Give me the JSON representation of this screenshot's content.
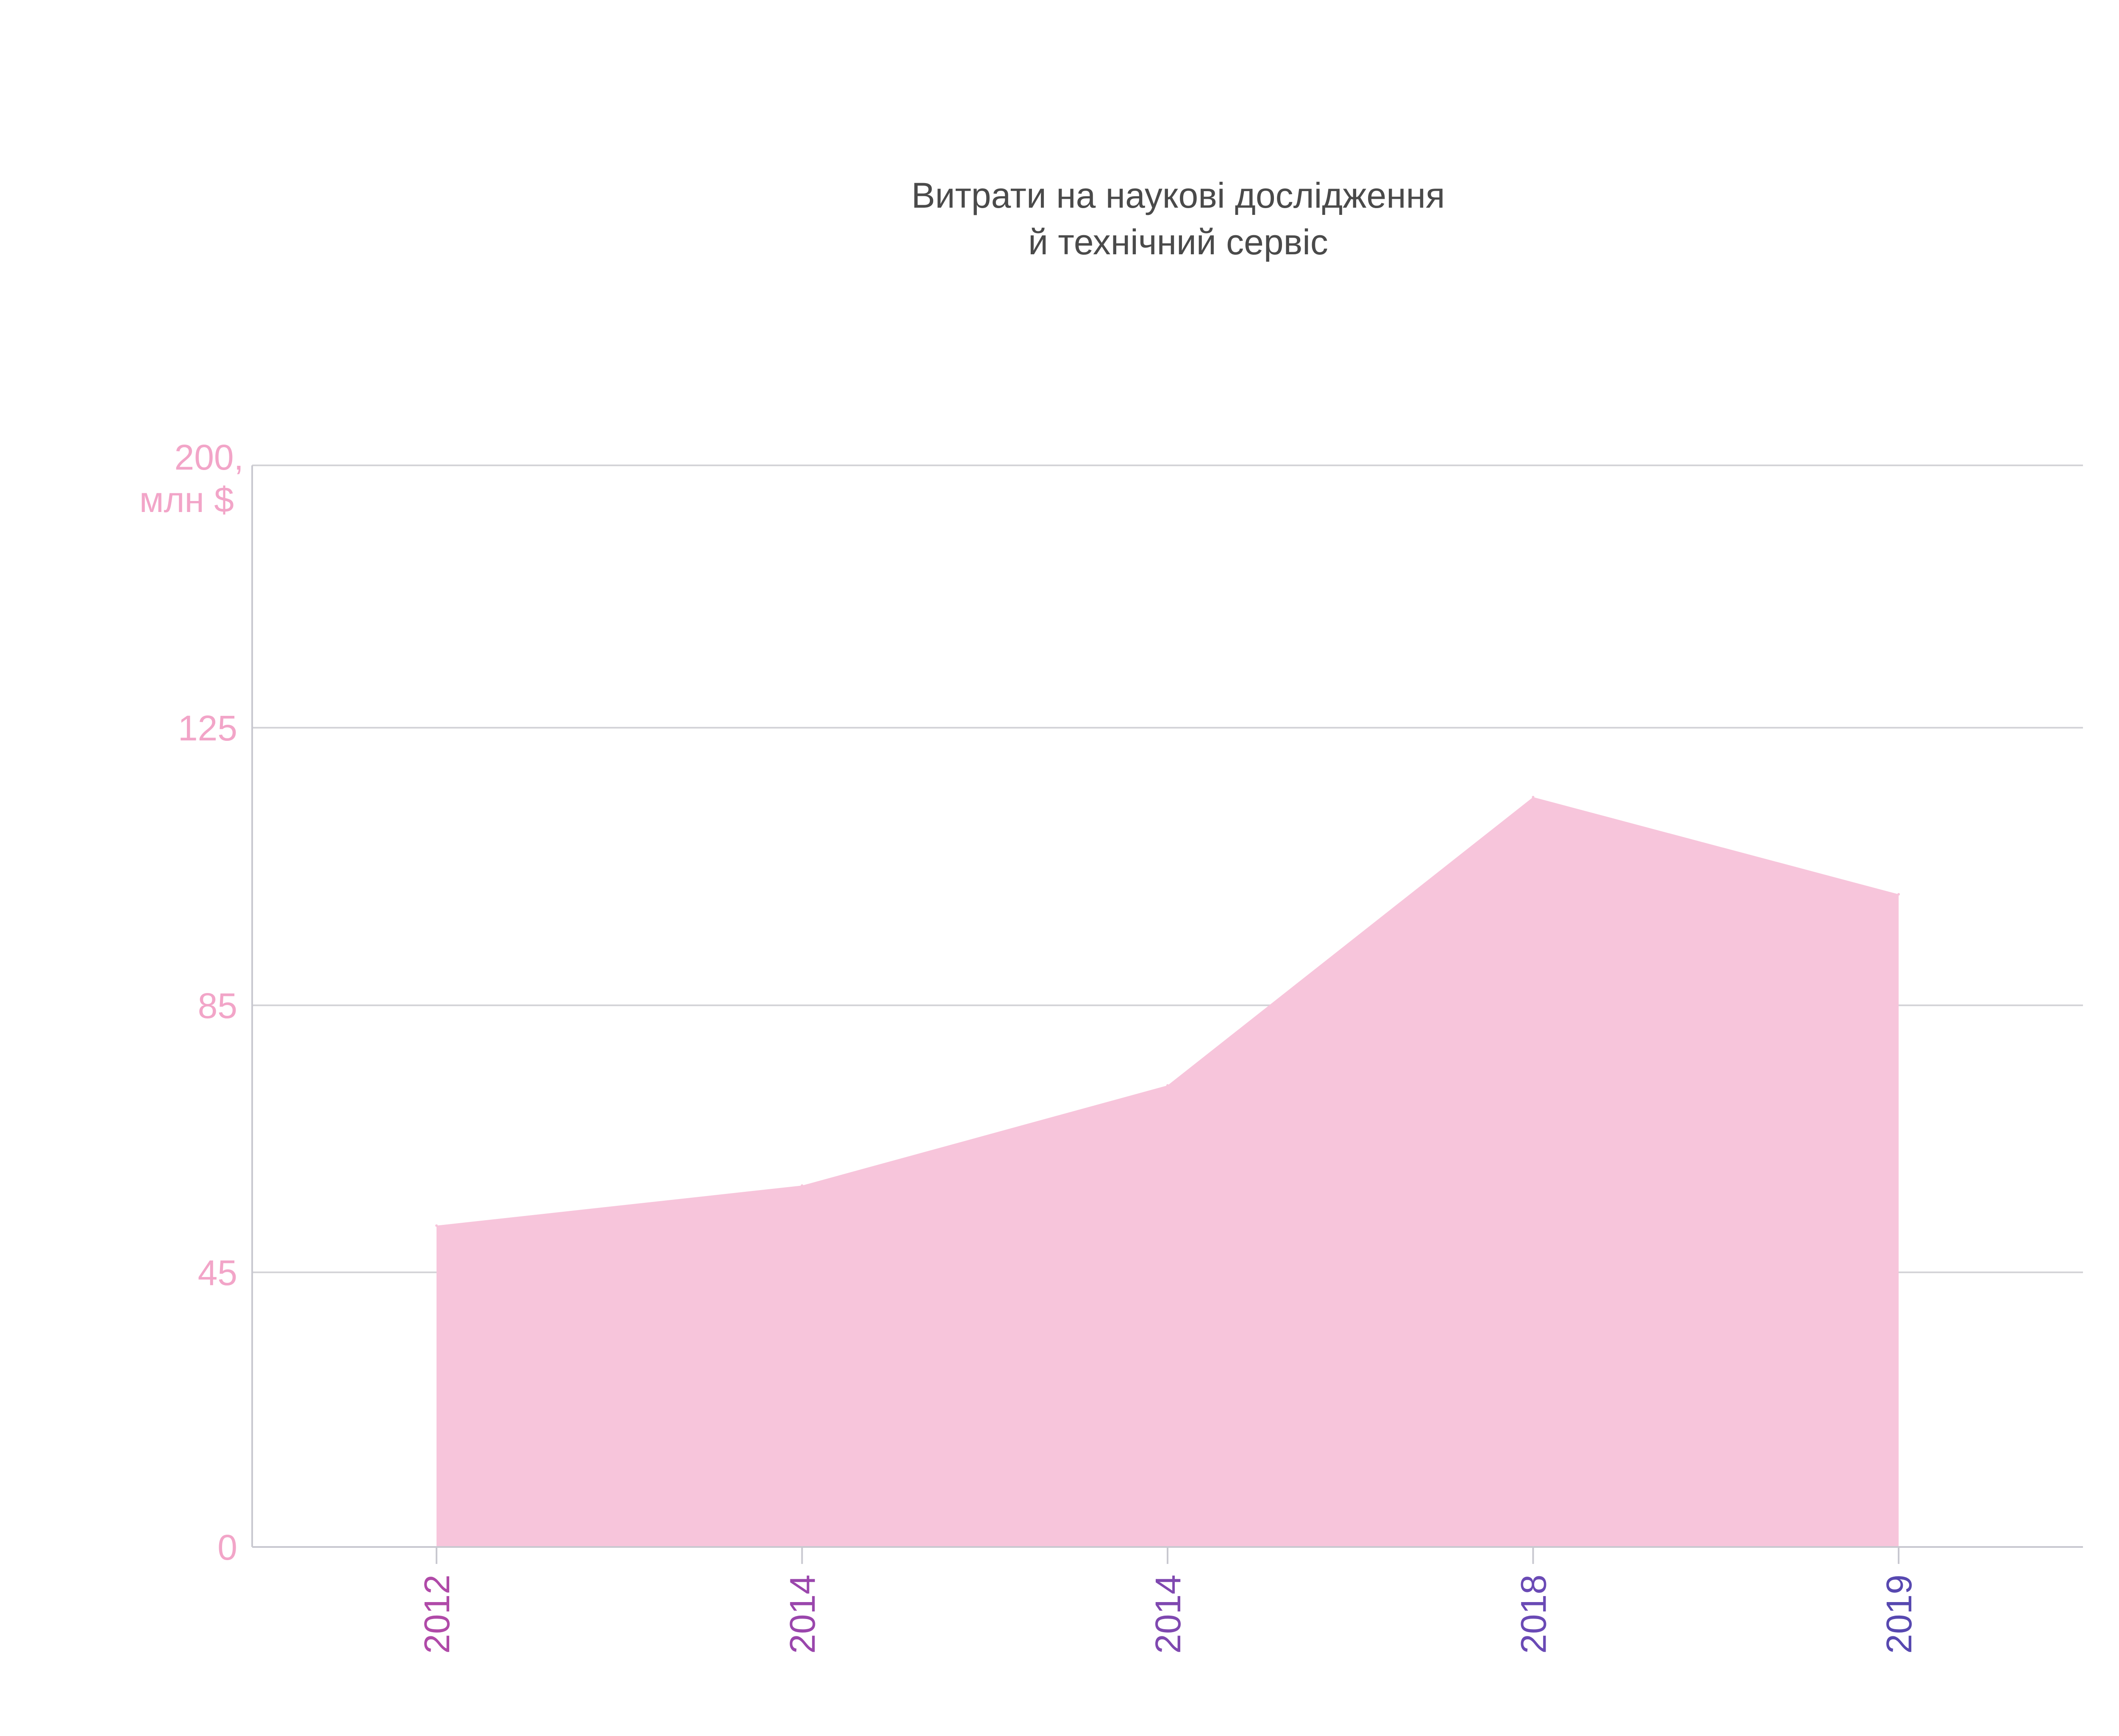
{
  "chart_data": {
    "type": "area",
    "title_lines": [
      "Витрати на наукові дослідження",
      "й технічний сервіс"
    ],
    "ylabel_unit": "млн $",
    "y_ticks": [
      {
        "value": 0,
        "label": "0"
      },
      {
        "value": 45,
        "label": "45"
      },
      {
        "value": 85,
        "label": "85"
      },
      {
        "value": 125,
        "label": "125"
      },
      {
        "value": 200,
        "label": "200,"
      }
    ],
    "y_scale_note": "nonlinear axis: tick labels at evenly-spaced gridlines",
    "categories": [
      "2012",
      "2014",
      "2014",
      "2018",
      "2019"
    ],
    "values": [
      52,
      58,
      73,
      115,
      101
    ],
    "grid": true,
    "colors": {
      "area_fill": "#f7c5db",
      "ytick_color": "#f2a5c8",
      "title_color": "#4a4a4a",
      "xtick_colors": [
        "#b04aa8",
        "#9a46ac",
        "#7f48b0",
        "#6a4ab5",
        "#5748b0"
      ]
    }
  }
}
